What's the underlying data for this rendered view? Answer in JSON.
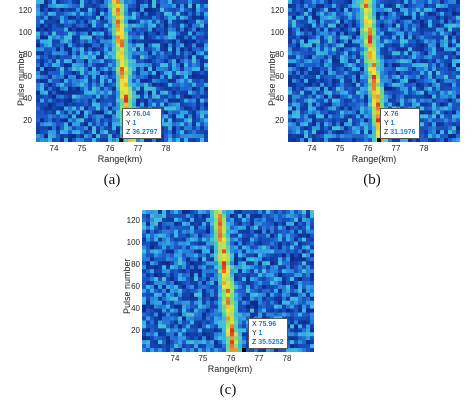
{
  "chart_data": [
    {
      "type": "heatmap",
      "caption": "(a)",
      "xlabel": "Range(km)",
      "ylabel": "Pulse number",
      "xlim": [
        72.7,
        78.8
      ],
      "ylim": [
        0,
        130
      ],
      "xticks": [
        "74",
        "75",
        "76",
        "77",
        "78"
      ],
      "xtick_values": [
        74,
        75,
        76,
        77,
        78
      ],
      "yticks": [
        "20",
        "40",
        "60",
        "80",
        "100",
        "120"
      ],
      "ytick_values": [
        20,
        40,
        60,
        80,
        100,
        120
      ],
      "ridge": [
        {
          "x": 75.55,
          "y": 130
        },
        {
          "x": 76.04,
          "y": 1
        }
      ],
      "datatip": {
        "X": "76.04",
        "Y": "1",
        "Z": "36.2797"
      }
    },
    {
      "type": "heatmap",
      "caption": "(b)",
      "xlabel": "Range(km)",
      "ylabel": "Pulse number",
      "xlim": [
        72.7,
        78.8
      ],
      "ylim": [
        0,
        130
      ],
      "xticks": [
        "74",
        "75",
        "76",
        "77",
        "78"
      ],
      "xtick_values": [
        74,
        75,
        76,
        77,
        78
      ],
      "yticks": [
        "20",
        "40",
        "60",
        "80",
        "100",
        "120"
      ],
      "ytick_values": [
        20,
        40,
        60,
        80,
        100,
        120
      ],
      "ridge": [
        {
          "x": 75.45,
          "y": 130
        },
        {
          "x": 76.0,
          "y": 1
        }
      ],
      "datatip": {
        "X": "76",
        "Y": "1",
        "Z": "31.1976"
      }
    },
    {
      "type": "heatmap",
      "caption": "(c)",
      "xlabel": "Range(km)",
      "ylabel": "Pulse number",
      "xlim": [
        72.7,
        78.8
      ],
      "ylim": [
        0,
        130
      ],
      "xticks": [
        "74",
        "75",
        "76",
        "77",
        "78"
      ],
      "xtick_values": [
        74,
        75,
        76,
        77,
        78
      ],
      "yticks": [
        "20",
        "40",
        "60",
        "80",
        "100",
        "120"
      ],
      "ytick_values": [
        20,
        40,
        60,
        80,
        100,
        120
      ],
      "ridge": [
        {
          "x": 75.4,
          "y": 130
        },
        {
          "x": 75.96,
          "y": 1
        }
      ],
      "datatip": {
        "X": "75.96",
        "Y": "1",
        "Z": "35.5252"
      }
    }
  ],
  "colors": {
    "background": "#0a2a8a",
    "noise_mid": "#1e5fd0",
    "noise_high": "#38b6e8",
    "ridge_low": "#7fe07a",
    "ridge_mid": "#f4e23a",
    "ridge_high": "#e0301e",
    "tip_value": "#1b7fd6"
  }
}
